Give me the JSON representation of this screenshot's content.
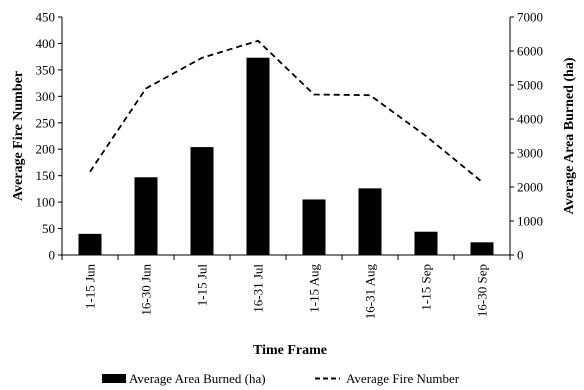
{
  "chart_data": {
    "type": "bar",
    "title": "",
    "xlabel": "Time Frame",
    "ylabel": "Average Fire Number",
    "y2label": "Average Area Burned (ha)",
    "categories": [
      "1-15 Jun",
      "16-30 Jun",
      "1-15 Jul",
      "16-31 Jul",
      "1-15 Aug",
      "16-31 Aug",
      "1-15 Sep",
      "16-30 Sep"
    ],
    "ylim": [
      0,
      450
    ],
    "yticks": [
      0,
      50,
      100,
      150,
      200,
      250,
      300,
      350,
      400,
      450
    ],
    "y2lim": [
      0,
      7000
    ],
    "y2ticks": [
      0,
      1000,
      2000,
      3000,
      4000,
      5000,
      6000,
      7000
    ],
    "series": [
      {
        "name": "Average Area Burned (ha)",
        "type": "bar",
        "axis": "left",
        "color": "#000000",
        "values": [
          40,
          147,
          204,
          373,
          105,
          126,
          44,
          24
        ]
      },
      {
        "name": "Average Fire Number",
        "type": "line",
        "axis": "right",
        "style": "dashed",
        "color": "#000000",
        "values": [
          2450,
          4900,
          5800,
          6300,
          4720,
          4700,
          3500,
          2150
        ]
      }
    ],
    "grid": false,
    "legend_position": "bottom"
  }
}
